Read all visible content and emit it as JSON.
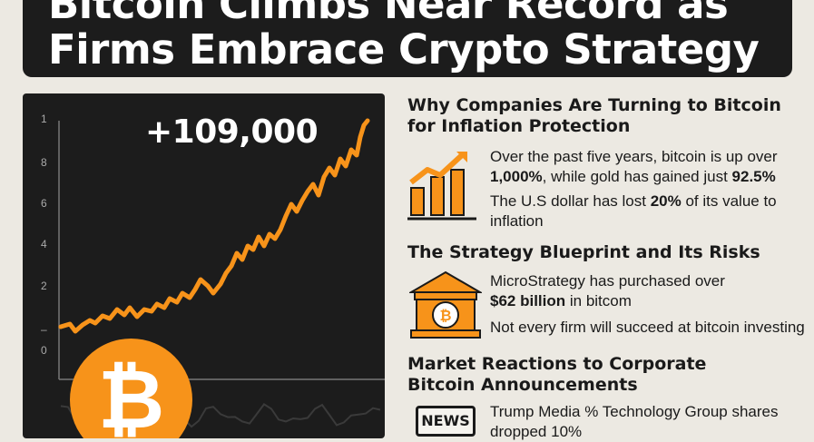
{
  "banner": {
    "title": "Bitcoin Climbs Near Record as\nFirms Embrace Crypto Strategy"
  },
  "chart": {
    "price_label": "+109,000",
    "coin_symbol": "₿",
    "line_color": "#f7931a",
    "y_ticks": [
      "1",
      "8",
      "6",
      "4",
      "2",
      "–",
      "0"
    ]
  },
  "sections": [
    {
      "title": "Why Companies Are Turning to Bitcoin for Inflation Protection",
      "icon": "bar-chart-growth-icon",
      "p1_pre": "Over the past five years, bitcoin is up over",
      "p1_strong1": "1,000%",
      "p1_mid": ", while gold has gained just ",
      "p1_strong2": "92.5%",
      "p2_pre": "The U.S dollar has lost ",
      "p2_strong": "20%",
      "p2_post": " of its value to inflation"
    },
    {
      "title": "The Strategy Blueprint and Its Risks",
      "icon": "bank-bitcoin-icon",
      "p1_pre": "MicroStrategy has purchased over",
      "p1_strong": "$62 billion",
      "p1_post": " in bitcom",
      "p2": "Not every firm will succeed at bitcoin investing"
    },
    {
      "title": "Market Reactions to Corporate Bitcoin Announcements",
      "icon_label": "NEWS",
      "p1": "Trump Media % Technology Group shares dropped 10%"
    }
  ],
  "colors": {
    "accent": "#f7931a",
    "dark": "#1c1c1c",
    "background": "#ece9e2"
  }
}
